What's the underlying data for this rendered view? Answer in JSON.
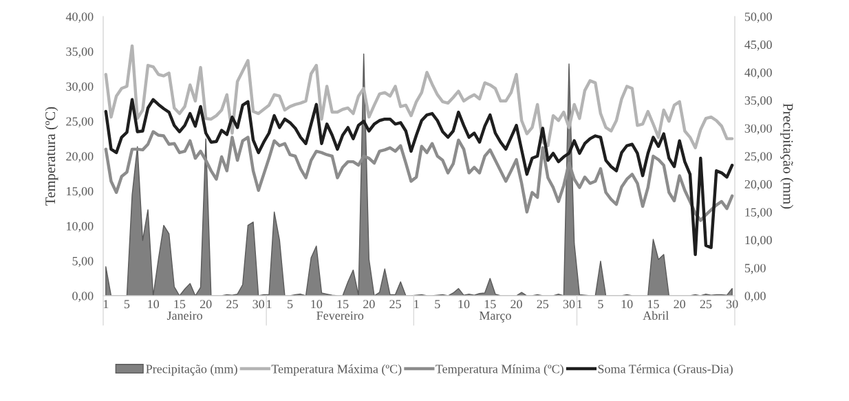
{
  "chart_data": {
    "type": "line",
    "categories": [
      "1",
      null,
      null,
      null,
      "5",
      null,
      null,
      null,
      null,
      "10",
      null,
      null,
      null,
      null,
      "15",
      null,
      null,
      null,
      null,
      "20",
      null,
      null,
      null,
      null,
      "25",
      null,
      null,
      null,
      null,
      "30",
      null,
      "1",
      null,
      null,
      null,
      "5",
      null,
      null,
      null,
      null,
      "10",
      null,
      null,
      null,
      null,
      "15",
      null,
      null,
      null,
      null,
      "20",
      null,
      null,
      null,
      null,
      "25",
      null,
      null,
      null,
      "1",
      null,
      null,
      null,
      "5",
      null,
      null,
      null,
      null,
      "10",
      null,
      null,
      null,
      null,
      "15",
      null,
      null,
      null,
      null,
      "20",
      null,
      null,
      null,
      null,
      "25",
      null,
      null,
      null,
      null,
      "30",
      null,
      "1",
      null,
      null,
      null,
      "5",
      null,
      null,
      null,
      null,
      "10",
      null,
      null,
      null,
      null,
      "15",
      null,
      null,
      null,
      null,
      "20",
      null,
      null,
      null,
      null,
      "25",
      null,
      null,
      null,
      null,
      "30"
    ],
    "annotations": [
      "Janeiro",
      "Fevereiro",
      "Março",
      "Abril"
    ],
    "ylabel": "Temperatura (ºC)",
    "y2label": "Precipitação (mm)",
    "ylim": [
      0,
      40
    ],
    "yticks": [
      {
        "value": 0,
        "label": "0,00"
      },
      {
        "value": 5,
        "label": "5,00"
      },
      {
        "value": 10,
        "label": "10,00"
      },
      {
        "value": 15,
        "label": "15,00"
      },
      {
        "value": 20,
        "label": "20,00"
      },
      {
        "value": 25,
        "label": "25,00"
      },
      {
        "value": 30,
        "label": "30,00"
      },
      {
        "value": 35,
        "label": "35,00"
      },
      {
        "value": 40,
        "label": "40,00"
      }
    ],
    "y2lim": [
      0,
      50
    ],
    "y2ticks": [
      {
        "value": 0,
        "label": "0,00"
      },
      {
        "value": 5,
        "label": "5,00"
      },
      {
        "value": 10,
        "label": "10,00"
      },
      {
        "value": 15,
        "label": "15,00"
      },
      {
        "value": 20,
        "label": "20,00"
      },
      {
        "value": 25,
        "label": "25,00"
      },
      {
        "value": 30,
        "label": "30,00"
      },
      {
        "value": 35,
        "label": "35,00"
      },
      {
        "value": 40,
        "label": "40,00"
      },
      {
        "value": 45,
        "label": "45,00"
      },
      {
        "value": 50,
        "label": "50,00"
      }
    ],
    "legend": "bottom",
    "line_style": "solid",
    "series": [
      {
        "name": "Precipitação (mm)",
        "type": "area",
        "axis": "y2",
        "color": "#808080",
        "values": [
          5.2,
          0,
          0,
          0,
          0,
          18.1,
          26.7,
          9.9,
          15.4,
          0,
          6.6,
          12.6,
          11.1,
          1.6,
          0,
          1.2,
          2.2,
          0,
          1.5,
          28.1,
          0,
          0,
          0,
          0.2,
          0.1,
          0.3,
          2.0,
          12.6,
          13.2,
          0,
          0.2,
          0.2,
          15.0,
          10.0,
          0,
          0,
          0.2,
          0.3,
          0,
          6.8,
          8.9,
          0.5,
          0.3,
          0.1,
          0,
          0,
          2.5,
          4.6,
          0.1,
          43.3,
          6.5,
          0,
          0.6,
          4.8,
          0.2,
          0.2,
          2.5,
          0,
          0,
          0.1,
          0.2,
          0,
          0,
          0.1,
          0.2,
          0,
          0.5,
          1.3,
          0.1,
          0.3,
          0.1,
          0.4,
          0.5,
          3.1,
          0.3,
          0,
          0,
          0,
          0,
          0.6,
          0,
          0,
          0.2,
          0,
          0,
          0,
          0.3,
          0,
          41.5,
          9.4,
          0.2,
          0.1,
          0,
          0,
          6.2,
          0,
          0,
          0,
          0,
          0.2,
          0,
          0,
          0,
          0,
          10.1,
          6.5,
          7.4,
          0,
          0,
          0,
          0,
          0,
          0.2,
          0,
          0.3,
          0.1,
          0.2,
          0.2,
          0.1,
          1.3
        ]
      },
      {
        "name": "Temperatura Máxima (ºC)",
        "color": "#b4b4b4",
        "values": [
          31.7,
          25.6,
          28.6,
          29.7,
          30.0,
          35.8,
          25.4,
          26.6,
          33.0,
          32.8,
          31.7,
          31.5,
          31.9,
          26.9,
          26.1,
          27.1,
          30.2,
          27.9,
          32.7,
          25.4,
          25.3,
          25.8,
          26.6,
          28.8,
          23.3,
          30.7,
          32.2,
          33.7,
          26.4,
          26.1,
          26.7,
          27.3,
          28.8,
          28.6,
          26.6,
          27.1,
          27.4,
          27.6,
          27.9,
          31.8,
          33.0,
          25.3,
          30.0,
          26.3,
          26.3,
          26.7,
          26.9,
          26.1,
          28.6,
          29.7,
          25.6,
          27.3,
          28.9,
          29.1,
          28.6,
          30.0,
          27.1,
          27.3,
          25.8,
          27.8,
          29.1,
          32.0,
          30.3,
          28.8,
          27.8,
          27.6,
          28.4,
          29.3,
          27.9,
          28.4,
          28.8,
          28.2,
          30.5,
          30.2,
          29.7,
          27.9,
          27.9,
          29.1,
          31.7,
          25.1,
          23.2,
          24.1,
          27.4,
          22.0,
          21.5,
          25.8,
          25.1,
          26.3,
          24.1,
          27.4,
          25.4,
          29.4,
          30.8,
          30.5,
          26.1,
          24.1,
          23.6,
          25.1,
          28.2,
          30.0,
          29.7,
          24.4,
          24.6,
          26.4,
          24.6,
          22.7,
          26.6,
          25.0,
          27.3,
          27.8,
          23.6,
          22.7,
          21.2,
          23.8,
          25.4,
          25.6,
          25.1,
          24.3,
          22.5,
          22.5
        ]
      },
      {
        "name": "Temperatura Mínima (ºC)",
        "color": "#8c8c8c",
        "values": [
          21.0,
          16.4,
          14.8,
          17.1,
          17.7,
          21.0,
          21.0,
          20.9,
          21.7,
          23.5,
          23.0,
          22.9,
          21.7,
          21.8,
          20.5,
          20.7,
          22.2,
          19.7,
          20.7,
          19.4,
          17.9,
          16.7,
          19.9,
          17.9,
          22.7,
          19.4,
          22.2,
          22.7,
          17.9,
          15.1,
          17.4,
          19.7,
          22.2,
          21.5,
          21.8,
          20.2,
          20.0,
          18.2,
          16.9,
          19.4,
          20.7,
          20.5,
          20.2,
          20.0,
          16.9,
          18.4,
          19.2,
          19.2,
          18.7,
          20.0,
          19.7,
          19.0,
          20.7,
          20.9,
          21.2,
          20.7,
          21.5,
          19.0,
          16.4,
          17.0,
          21.4,
          20.5,
          21.8,
          20.0,
          19.4,
          17.6,
          18.9,
          22.3,
          21.0,
          17.6,
          18.4,
          17.6,
          20.0,
          20.9,
          19.4,
          17.9,
          16.4,
          17.9,
          19.5,
          16.1,
          12.0,
          14.8,
          14.1,
          21.2,
          16.9,
          15.5,
          13.5,
          15.8,
          19.0,
          16.7,
          15.5,
          17.0,
          16.1,
          16.4,
          18.2,
          14.8,
          13.8,
          13.1,
          15.6,
          16.7,
          17.4,
          16.1,
          12.8,
          15.5,
          20.0,
          19.5,
          18.7,
          14.8,
          13.6,
          17.2,
          15.1,
          13.5,
          11.8,
          10.8,
          11.6,
          12.3,
          13.0,
          13.5,
          12.5,
          14.3
        ]
      },
      {
        "name": "Soma Térmica (Graus-Dia)",
        "color": "#1e1e1e",
        "values": [
          26.4,
          21.0,
          20.5,
          22.7,
          23.4,
          28.1,
          23.5,
          23.6,
          26.9,
          28.1,
          27.4,
          26.8,
          26.3,
          24.4,
          23.5,
          24.4,
          26.1,
          24.3,
          27.1,
          23.3,
          22.0,
          22.1,
          23.7,
          23.1,
          25.6,
          24.1,
          27.3,
          27.8,
          22.3,
          20.5,
          22.0,
          23.3,
          25.8,
          24.1,
          25.3,
          24.8,
          24.0,
          22.7,
          21.8,
          24.6,
          27.4,
          21.8,
          24.6,
          23.0,
          21.0,
          23.0,
          24.1,
          22.5,
          24.4,
          25.0,
          23.6,
          24.6,
          25.1,
          25.3,
          25.3,
          24.6,
          24.8,
          23.6,
          20.7,
          23.0,
          25.1,
          25.9,
          26.1,
          25.1,
          23.5,
          22.7,
          23.6,
          26.3,
          24.4,
          22.7,
          23.3,
          22.0,
          24.3,
          25.9,
          23.3,
          22.0,
          21.0,
          22.7,
          24.4,
          20.9,
          17.4,
          19.7,
          20.0,
          24.0,
          19.4,
          20.4,
          19.2,
          19.9,
          20.4,
          22.2,
          20.4,
          21.8,
          22.5,
          22.9,
          22.7,
          19.4,
          18.5,
          17.9,
          20.5,
          21.5,
          21.7,
          20.4,
          17.2,
          20.4,
          22.7,
          21.4,
          23.2,
          19.7,
          18.5,
          22.2,
          19.2,
          17.4,
          5.9,
          19.7,
          7.2,
          6.9,
          17.9,
          17.6,
          17.0,
          18.7
        ]
      }
    ]
  }
}
